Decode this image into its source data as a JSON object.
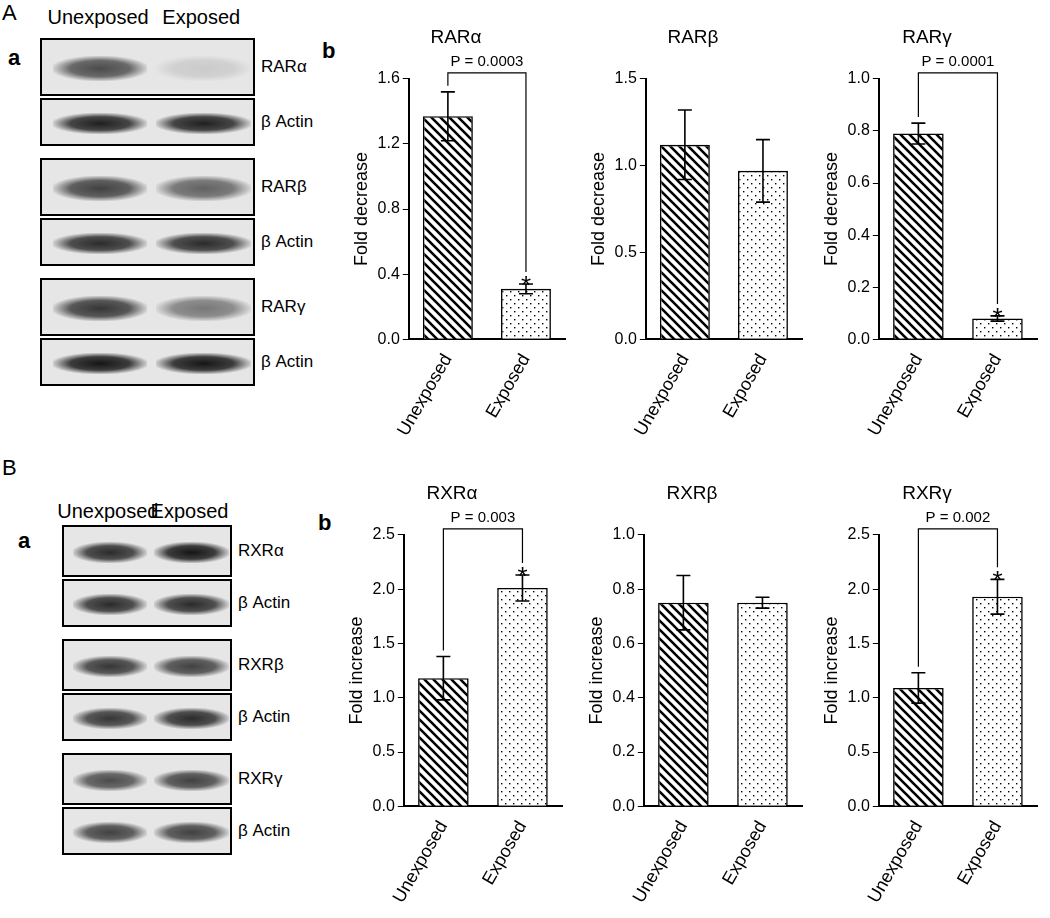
{
  "panels": [
    {
      "label": "A",
      "parts": [
        "a",
        "b"
      ],
      "blot": {
        "lanes": [
          "Unexposed",
          "Exposed"
        ],
        "rows": [
          "RARα",
          "β Actin",
          "RARβ",
          "β Actin",
          "RARγ",
          "β Actin"
        ]
      }
    },
    {
      "label": "B",
      "parts": [
        "a",
        "b"
      ],
      "blot": {
        "lanes": [
          "Unexposed",
          "Exposed"
        ],
        "rows": [
          "RXRα",
          "β Actin",
          "RXRβ",
          "β Actin",
          "RXRγ",
          "β Actin"
        ]
      }
    }
  ],
  "chart_data": [
    {
      "type": "bar",
      "title": "RARα",
      "categories": [
        "Unexposed",
        "Exposed"
      ],
      "values": [
        1.37,
        0.31
      ],
      "errors": [
        0.15,
        0.03
      ],
      "color": "#000000",
      "y_label": "Fold decrease",
      "ylim": [
        0,
        1.6
      ],
      "yticks": [
        {
          "value": 0,
          "label": "0.0"
        },
        {
          "value": 0.4,
          "label": "0.4"
        },
        {
          "value": 0.8,
          "label": "0.8"
        },
        {
          "value": 1.2,
          "label": "1.2"
        },
        {
          "value": 1.6,
          "label": "1.6"
        }
      ],
      "grid": false,
      "annotations": [
        {
          "text": "P = 0.0003",
          "categories": [
            "Unexposed",
            "Exposed"
          ]
        },
        {
          "text": "*",
          "category": "Exposed"
        }
      ]
    },
    {
      "type": "bar",
      "title": "RARβ",
      "categories": [
        "Unexposed",
        "Exposed"
      ],
      "values": [
        1.12,
        0.97
      ],
      "errors": [
        0.2,
        0.18
      ],
      "color": "#000000",
      "y_label": "Fold decrease",
      "ylim": [
        0,
        1.5
      ],
      "yticks": [
        {
          "value": 0,
          "label": "0.0"
        },
        {
          "value": 0.5,
          "label": "0.5"
        },
        {
          "value": 1,
          "label": "1.0"
        },
        {
          "value": 1.5,
          "label": "1.5"
        }
      ],
      "grid": false
    },
    {
      "type": "bar",
      "title": "RARγ",
      "categories": [
        "Unexposed",
        "Exposed"
      ],
      "values": [
        0.79,
        0.08
      ],
      "errors": [
        0.04,
        0.01
      ],
      "color": "#000000",
      "y_label": "Fold decrease",
      "ylim": [
        0,
        1.0
      ],
      "yticks": [
        {
          "value": 0,
          "label": "0.0"
        },
        {
          "value": 0.2,
          "label": "0.2"
        },
        {
          "value": 0.4,
          "label": "0.4"
        },
        {
          "value": 0.6,
          "label": "0.6"
        },
        {
          "value": 0.8,
          "label": "0.8"
        },
        {
          "value": 1,
          "label": "1.0"
        }
      ],
      "grid": false,
      "annotations": [
        {
          "text": "P = 0.0001",
          "categories": [
            "Unexposed",
            "Exposed"
          ]
        },
        {
          "text": "*",
          "category": "Exposed"
        }
      ]
    },
    {
      "type": "bar",
      "title": "RXRα",
      "categories": [
        "Unexposed",
        "Exposed"
      ],
      "values": [
        1.18,
        2.01
      ],
      "errors": [
        0.2,
        0.12
      ],
      "color": "#000000",
      "y_label": "Fold increase",
      "ylim": [
        0,
        2.5
      ],
      "yticks": [
        {
          "value": 0,
          "label": "0.0"
        },
        {
          "value": 0.5,
          "label": "0.5"
        },
        {
          "value": 1,
          "label": "1.0"
        },
        {
          "value": 1.5,
          "label": "1.5"
        },
        {
          "value": 2,
          "label": "2.0"
        },
        {
          "value": 2.5,
          "label": "2.5"
        }
      ],
      "grid": false,
      "annotations": [
        {
          "text": "P = 0.003",
          "categories": [
            "Unexposed",
            "Exposed"
          ]
        },
        {
          "text": "*",
          "category": "Exposed"
        }
      ]
    },
    {
      "type": "bar",
      "title": "RXRβ",
      "categories": [
        "Unexposed",
        "Exposed"
      ],
      "values": [
        0.75,
        0.75
      ],
      "errors": [
        0.1,
        0.02
      ],
      "color": "#000000",
      "y_label": "Fold increase",
      "ylim": [
        0,
        1.0
      ],
      "yticks": [
        {
          "value": 0,
          "label": "0.0"
        },
        {
          "value": 0.2,
          "label": "0.2"
        },
        {
          "value": 0.4,
          "label": "0.4"
        },
        {
          "value": 0.6,
          "label": "0.6"
        },
        {
          "value": 0.8,
          "label": "0.8"
        },
        {
          "value": 1,
          "label": "1.0"
        }
      ],
      "grid": false
    },
    {
      "type": "bar",
      "title": "RXRγ",
      "categories": [
        "Unexposed",
        "Exposed"
      ],
      "values": [
        1.09,
        1.93
      ],
      "errors": [
        0.14,
        0.16
      ],
      "color": "#000000",
      "y_label": "Fold increase",
      "ylim": [
        0,
        2.5
      ],
      "yticks": [
        {
          "value": 0,
          "label": "0.0"
        },
        {
          "value": 0.5,
          "label": "0.5"
        },
        {
          "value": 1,
          "label": "1.0"
        },
        {
          "value": 1.5,
          "label": "1.5"
        },
        {
          "value": 2,
          "label": "2.0"
        },
        {
          "value": 2.5,
          "label": "2.5"
        }
      ],
      "grid": false,
      "annotations": [
        {
          "text": "P = 0.002",
          "categories": [
            "Unexposed",
            "Exposed"
          ]
        },
        {
          "text": "*",
          "category": "Exposed"
        }
      ]
    }
  ]
}
